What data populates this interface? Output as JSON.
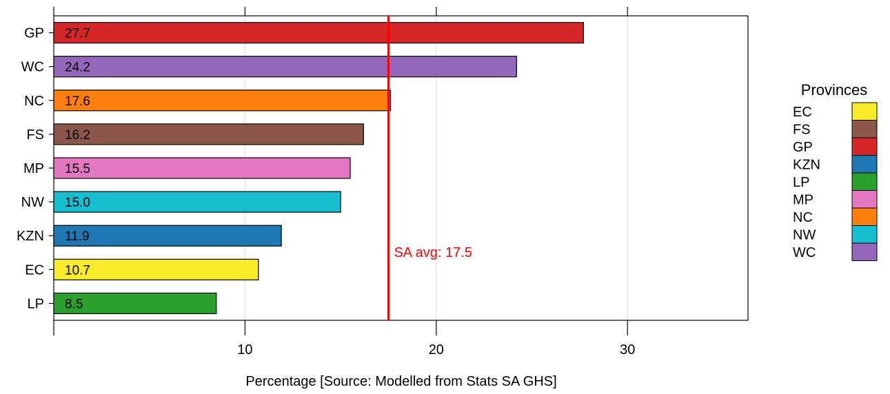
{
  "chart_data": {
    "type": "bar",
    "orientation": "horizontal",
    "title": "",
    "xlabel": "Percentage [Source: Modelled from Stats SA GHS]",
    "ylabel": "",
    "xlim": [
      0,
      36.3
    ],
    "x_ticks": [
      10,
      20,
      30
    ],
    "grid": "vertical lines at major ticks",
    "categories": [
      "GP",
      "WC",
      "NC",
      "FS",
      "MP",
      "NW",
      "KZN",
      "EC",
      "LP"
    ],
    "values": [
      27.7,
      24.2,
      17.6,
      16.2,
      15.5,
      15.0,
      11.9,
      10.7,
      8.5
    ],
    "value_labels": [
      "27.7",
      "24.2",
      "17.6",
      "16.2",
      "15.5",
      "15.0",
      "11.9",
      "10.7",
      "8.5"
    ],
    "bar_colors": {
      "EC": "#f9ea2a",
      "FS": "#8c564b",
      "GP": "#d62728",
      "KZN": "#1f77b4",
      "LP": "#2ca02c",
      "MP": "#e377c2",
      "NC": "#ff7f0e",
      "NW": "#17becf",
      "WC": "#9467bd"
    },
    "reference_line": {
      "value": 17.5,
      "label": "SA avg: 17.5",
      "color": "#ff0000"
    },
    "legend": {
      "title": "Provinces",
      "placement": "right",
      "entries": [
        "EC",
        "FS",
        "GP",
        "KZN",
        "LP",
        "MP",
        "NC",
        "NW",
        "WC"
      ]
    }
  }
}
